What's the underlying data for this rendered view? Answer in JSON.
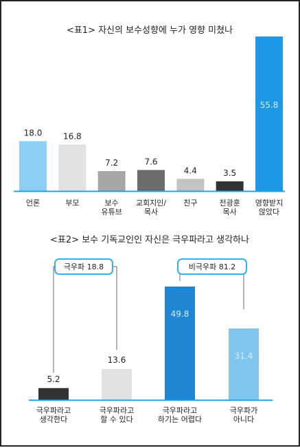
{
  "chart_data": [
    {
      "type": "bar",
      "title": "<표1> 자신의 보수성향에 누가 영향 미쳤나",
      "categories": [
        [
          "언론"
        ],
        [
          "부모"
        ],
        [
          "보수",
          "유튜브"
        ],
        [
          "교회지인/",
          "목사"
        ],
        [
          "친구"
        ],
        [
          "전광훈",
          "목사"
        ],
        [
          "영향받지",
          "않았다"
        ]
      ],
      "values": [
        18.0,
        16.8,
        7.2,
        7.6,
        4.4,
        3.5,
        55.8
      ],
      "value_labels": [
        "18.0",
        "16.8",
        "7.2",
        "7.6",
        "4.4",
        "3.5",
        "55.8"
      ],
      "colors": [
        "#8ccff3",
        "#e1e2e2",
        "#a6a6a6",
        "#6d6d6d",
        "#c3c3c3",
        "#333333",
        "#1e98e6"
      ],
      "ylim": [
        0,
        60
      ]
    },
    {
      "type": "bar",
      "title": "<표2> 보수 기독교인인 자신은 극우파라고 생각하나",
      "categories": [
        [
          "극우파라고",
          "생각한다"
        ],
        [
          "극우파라고",
          "할 수 있다"
        ],
        [
          "극우파라고",
          "하기는 어렵다"
        ],
        [
          "극우파가",
          "아니다"
        ]
      ],
      "values": [
        5.2,
        13.6,
        49.8,
        31.4
      ],
      "value_labels": [
        "5.2",
        "13.6",
        "49.8",
        "31.4"
      ],
      "colors": [
        "#333333",
        "#e1e2e2",
        "#1e86d2",
        "#80c6ee"
      ],
      "ylim": [
        0,
        60
      ],
      "groups": [
        {
          "label": "극우파 18.8",
          "members": [
            0,
            1
          ]
        },
        {
          "label": "비극우파 81.2",
          "members": [
            2,
            3
          ]
        }
      ]
    }
  ]
}
